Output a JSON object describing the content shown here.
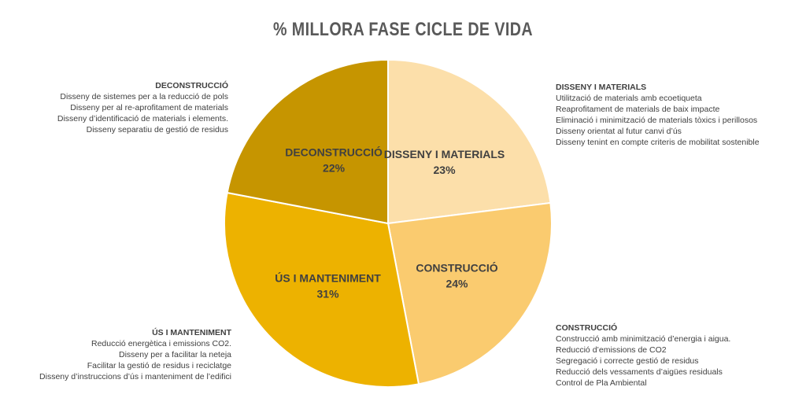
{
  "chart_data": {
    "type": "pie",
    "title": "% MILLORA FASE CICLE DE VIDA",
    "slices": [
      {
        "name": "DISSENY I MATERIALS",
        "value": 23,
        "label": "23%",
        "color": "#FCDFAA"
      },
      {
        "name": "CONSTRUCCIÓ",
        "value": 24,
        "label": "24%",
        "color": "#FACB6F"
      },
      {
        "name": "ÚS I MANTENIMENT",
        "value": 31,
        "label": "31%",
        "color": "#EDB200"
      },
      {
        "name": "DECONSTRUCCIÓ",
        "value": 22,
        "label": "22%",
        "color": "#C69500"
      }
    ]
  },
  "annotations": {
    "disseny": {
      "heading": "DISSENY I MATERIALS",
      "lines": [
        "Utilització de materials amb ecoetiqueta",
        "Reaprofitament de materials de baix impacte",
        "Eliminació i minimització de materials tòxics i perillosos",
        "Disseny orientat al futur canvi d’ús",
        "Disseny tenint en compte criteris de mobilitat sostenible"
      ]
    },
    "construccio": {
      "heading": "CONSTRUCCIÓ",
      "lines": [
        "Construcció amb minimització d’energia i aigua.",
        "Reducció d’emissions de CO2",
        "Segregació i correcte gestió de residus",
        "Reducció dels vessaments d’aigües residuals",
        "Control de Pla Ambiental"
      ]
    },
    "us": {
      "heading": "ÚS I MANTENIMENT",
      "lines": [
        "Reducció energètica i emissions CO2.",
        "Disseny per a facilitar la neteja",
        "Facilitar la gestió de residus i reciclatge",
        "Disseny d’instruccions d’ús i manteniment de l’edifici"
      ]
    },
    "deconstruccio": {
      "heading": "DECONSTRUCCIÓ",
      "lines": [
        "Disseny de sistemes per a la reducció de pols",
        "Disseny per al re-aprofitament de materials",
        "Disseny d’identificació de materials i elements.",
        "Disseny separatiu de gestió de residus"
      ]
    }
  }
}
